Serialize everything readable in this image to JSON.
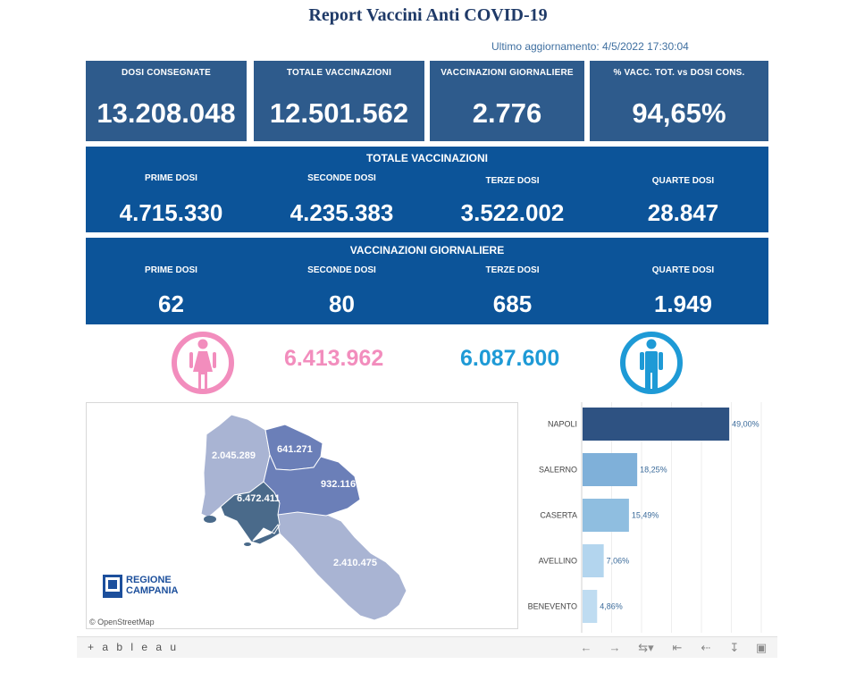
{
  "header": {
    "title": "Report Vaccini Anti COVID-19",
    "last_update": "Ultimo aggiornamento: 4/5/2022 17:30:04"
  },
  "kpis": [
    {
      "label": "DOSI  CONSEGNATE",
      "value": "13.208.048"
    },
    {
      "label": "TOTALE VACCINAZIONI",
      "value": "12.501.562"
    },
    {
      "label": "VACCINAZIONI GIORNALIERE",
      "value": "2.776"
    },
    {
      "label": "% VACC. TOT. vs DOSI CONS.",
      "value": "94,65%"
    }
  ],
  "totale_vaccinazioni": {
    "title": "TOTALE VACCINAZIONI",
    "items": [
      {
        "label": "PRIME DOSI",
        "value": "4.715.330"
      },
      {
        "label": "SECONDE DOSI",
        "value": "4.235.383"
      },
      {
        "label": "TERZE DOSI",
        "value": "3.522.002"
      },
      {
        "label": "QUARTE DOSI",
        "value": "28.847"
      }
    ]
  },
  "vaccinazioni_giornaliere": {
    "title": "VACCINAZIONI GIORNALIERE",
    "items": [
      {
        "label": "PRIME DOSI",
        "value": "62"
      },
      {
        "label": "SECONDE DOSI",
        "value": "80"
      },
      {
        "label": "TERZE DOSI",
        "value": "685"
      },
      {
        "label": "QUARTE DOSI",
        "value": "1.949"
      }
    ]
  },
  "gender": {
    "female_value": "6.413.962",
    "male_value": "6.087.600",
    "female_color": "#f28dbd",
    "male_color": "#1e9ad6",
    "female_icon": "female-person-icon",
    "male_icon": "male-person-icon"
  },
  "map": {
    "labels": {
      "caserta": "2.045.289",
      "benevento": "641.271",
      "avellino": "932.116",
      "napoli": "6.472.411",
      "salerno": "2.410.475"
    },
    "logo_line1": "REGIONE",
    "logo_line2": "CAMPANIA",
    "attribution": "© OpenStreetMap"
  },
  "chart_data": {
    "type": "bar",
    "orientation": "horizontal",
    "categories": [
      "NAPOLI",
      "SALERNO",
      "CASERTA",
      "AVELLINO",
      "BENEVENTO"
    ],
    "values": [
      49.0,
      18.25,
      15.49,
      7.06,
      4.86
    ],
    "value_labels": [
      "49,00%",
      "18,25%",
      "15,49%",
      "7,06%",
      "4,86%"
    ],
    "colors": [
      "#2e5282",
      "#7fb0d9",
      "#8fbee0",
      "#b3d5ee",
      "#bfdcf1"
    ],
    "xlim": [
      0,
      60
    ],
    "grid": true
  },
  "toolbar": {
    "logo": "+ a b l e a u",
    "undo_icon": "undo-icon",
    "redo_icon": "redo-icon",
    "revert_icon": "revert-icon",
    "pause_icon": "pause-icon",
    "share_icon": "share-icon",
    "download_icon": "download-icon",
    "fullscreen_icon": "fullscreen-icon"
  }
}
